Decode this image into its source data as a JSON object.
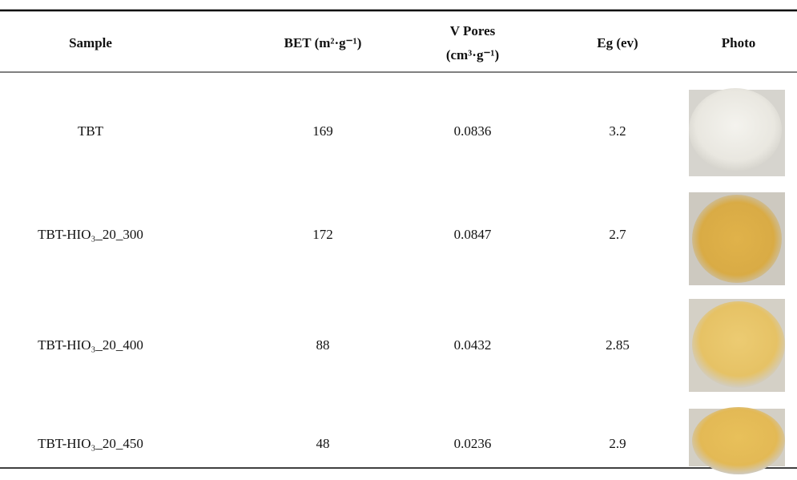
{
  "table": {
    "headers": [
      "Sample",
      "BET (m²·g⁻¹)",
      [
        "V Pores",
        "(cm³·g⁻¹)"
      ],
      "Eg (ev)",
      "Photo"
    ],
    "rows": [
      [
        "TBT",
        "169",
        "0.0836",
        "3.2"
      ],
      [
        "TBT-HIO₃_20_300",
        "172",
        "0.0847",
        "2.7"
      ],
      [
        "TBT-HIO₃_20_400",
        "88",
        "0.0432",
        "2.85"
      ],
      [
        "TBT-HIO₃_20_450",
        "48",
        "0.0236",
        "2.9"
      ]
    ]
  }
}
